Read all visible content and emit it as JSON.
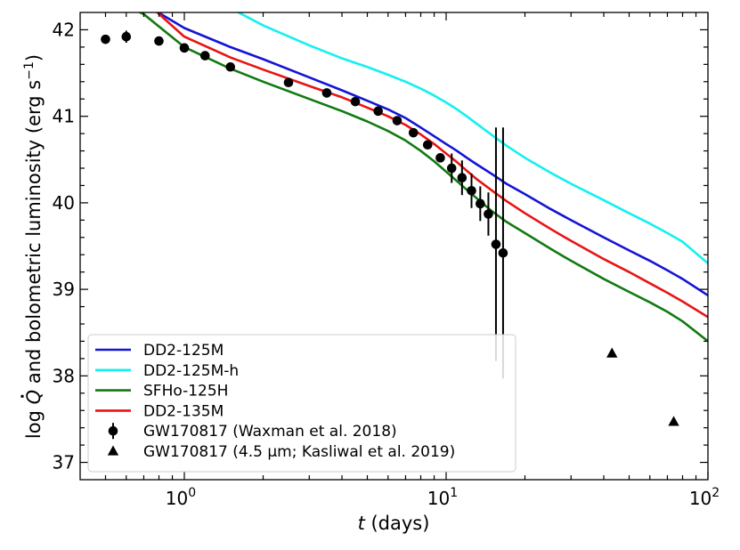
{
  "chart_data": {
    "type": "line",
    "title": "",
    "xlabel_italic": "t",
    "xlabel_rest": " (days)",
    "ylabel_pre": "log ",
    "ylabel_q": "Q",
    "ylabel_mid": " and bolometric luminosity (erg s",
    "ylabel_exp": "−1",
    "ylabel_post": ")",
    "xscale": "log",
    "xlim": [
      0.4,
      100
    ],
    "ylim": [
      36.8,
      42.2
    ],
    "x_ticks": [
      {
        "value": 1,
        "base": "10",
        "exp": "0"
      },
      {
        "value": 10,
        "base": "10",
        "exp": "1"
      },
      {
        "value": 100,
        "base": "10",
        "exp": "2"
      }
    ],
    "y_ticks": [
      {
        "value": 37,
        "label": "37"
      },
      {
        "value": 38,
        "label": "38"
      },
      {
        "value": 39,
        "label": "39"
      },
      {
        "value": 40,
        "label": "40"
      },
      {
        "value": 41,
        "label": "41"
      },
      {
        "value": 42,
        "label": "42"
      }
    ],
    "legend_position": "lower-left",
    "series": [
      {
        "name": "DD2-125M",
        "color": "#1414d6",
        "points": [
          [
            0.5,
            42.6
          ],
          [
            0.7,
            42.3
          ],
          [
            1.0,
            42.02
          ],
          [
            1.5,
            41.8
          ],
          [
            2.0,
            41.66
          ],
          [
            3.0,
            41.45
          ],
          [
            4.0,
            41.3
          ],
          [
            5.0,
            41.18
          ],
          [
            6.0,
            41.08
          ],
          [
            7.0,
            40.98
          ],
          [
            8.0,
            40.87
          ],
          [
            9.0,
            40.77
          ],
          [
            10.0,
            40.68
          ],
          [
            11.0,
            40.6
          ],
          [
            12.0,
            40.52
          ],
          [
            13.0,
            40.45
          ],
          [
            15.0,
            40.33
          ],
          [
            17.0,
            40.22
          ],
          [
            20.0,
            40.1
          ],
          [
            25.0,
            39.93
          ],
          [
            30.0,
            39.8
          ],
          [
            40.0,
            39.6
          ],
          [
            50.0,
            39.45
          ],
          [
            60.0,
            39.33
          ],
          [
            70.0,
            39.22
          ],
          [
            80.0,
            39.12
          ],
          [
            100.0,
            38.93
          ]
        ]
      },
      {
        "name": "DD2-125M-h",
        "color": "#14f0f0",
        "points": [
          [
            1.0,
            42.6
          ],
          [
            1.5,
            42.25
          ],
          [
            2.0,
            42.05
          ],
          [
            3.0,
            41.82
          ],
          [
            4.0,
            41.67
          ],
          [
            5.0,
            41.57
          ],
          [
            6.0,
            41.48
          ],
          [
            7.0,
            41.4
          ],
          [
            8.0,
            41.32
          ],
          [
            9.0,
            41.24
          ],
          [
            10.0,
            41.16
          ],
          [
            11.0,
            41.08
          ],
          [
            12.0,
            41.0
          ],
          [
            13.0,
            40.92
          ],
          [
            15.0,
            40.78
          ],
          [
            17.0,
            40.66
          ],
          [
            20.0,
            40.52
          ],
          [
            25.0,
            40.35
          ],
          [
            30.0,
            40.22
          ],
          [
            40.0,
            40.03
          ],
          [
            50.0,
            39.88
          ],
          [
            60.0,
            39.76
          ],
          [
            70.0,
            39.65
          ],
          [
            80.0,
            39.55
          ],
          [
            100.0,
            39.3
          ]
        ]
      },
      {
        "name": "SFHo-125H",
        "color": "#127a12",
        "points": [
          [
            0.5,
            42.4
          ],
          [
            0.7,
            42.18
          ],
          [
            1.0,
            41.8
          ],
          [
            1.5,
            41.55
          ],
          [
            2.0,
            41.4
          ],
          [
            3.0,
            41.2
          ],
          [
            4.0,
            41.06
          ],
          [
            5.0,
            40.94
          ],
          [
            6.0,
            40.83
          ],
          [
            7.0,
            40.72
          ],
          [
            8.0,
            40.6
          ],
          [
            9.0,
            40.48
          ],
          [
            10.0,
            40.36
          ],
          [
            11.0,
            40.25
          ],
          [
            12.0,
            40.15
          ],
          [
            13.0,
            40.06
          ],
          [
            15.0,
            39.9
          ],
          [
            17.0,
            39.78
          ],
          [
            20.0,
            39.65
          ],
          [
            25.0,
            39.47
          ],
          [
            30.0,
            39.33
          ],
          [
            40.0,
            39.12
          ],
          [
            50.0,
            38.97
          ],
          [
            60.0,
            38.85
          ],
          [
            70.0,
            38.74
          ],
          [
            80.0,
            38.63
          ],
          [
            100.0,
            38.4
          ]
        ]
      },
      {
        "name": "DD2-135M",
        "color": "#e81414",
        "points": [
          [
            0.5,
            42.6
          ],
          [
            0.7,
            42.34
          ],
          [
            1.0,
            41.92
          ],
          [
            1.5,
            41.68
          ],
          [
            2.0,
            41.54
          ],
          [
            3.0,
            41.35
          ],
          [
            4.0,
            41.22
          ],
          [
            5.0,
            41.1
          ],
          [
            6.0,
            41.0
          ],
          [
            7.0,
            40.9
          ],
          [
            8.0,
            40.79
          ],
          [
            9.0,
            40.68
          ],
          [
            10.0,
            40.57
          ],
          [
            11.0,
            40.47
          ],
          [
            12.0,
            40.37
          ],
          [
            13.0,
            40.28
          ],
          [
            15.0,
            40.14
          ],
          [
            17.0,
            40.02
          ],
          [
            20.0,
            39.88
          ],
          [
            25.0,
            39.7
          ],
          [
            30.0,
            39.56
          ],
          [
            40.0,
            39.35
          ],
          [
            50.0,
            39.2
          ],
          [
            60.0,
            39.07
          ],
          [
            70.0,
            38.96
          ],
          [
            80.0,
            38.86
          ],
          [
            100.0,
            38.68
          ]
        ]
      }
    ],
    "observations": [
      {
        "name": "GW170817 (Waxman et al. 2018)",
        "marker": "circle",
        "color": "#000000",
        "points": [
          {
            "x": 0.5,
            "y": 41.89,
            "yerr": 0.0
          },
          {
            "x": 0.6,
            "y": 41.92,
            "yerr": 0.07
          },
          {
            "x": 0.8,
            "y": 41.87,
            "yerr": 0.0
          },
          {
            "x": 1.0,
            "y": 41.79,
            "yerr": 0.0
          },
          {
            "x": 1.2,
            "y": 41.7,
            "yerr": 0.0
          },
          {
            "x": 1.5,
            "y": 41.57,
            "yerr": 0.0
          },
          {
            "x": 2.5,
            "y": 41.39,
            "yerr": 0.0
          },
          {
            "x": 3.5,
            "y": 41.27,
            "yerr": 0.0
          },
          {
            "x": 4.5,
            "y": 41.17,
            "yerr": 0.0
          },
          {
            "x": 5.5,
            "y": 41.06,
            "yerr": 0.0
          },
          {
            "x": 6.5,
            "y": 40.95,
            "yerr": 0.0
          },
          {
            "x": 7.5,
            "y": 40.81,
            "yerr": 0.0
          },
          {
            "x": 8.5,
            "y": 40.67,
            "yerr": 0.0
          },
          {
            "x": 9.5,
            "y": 40.52,
            "yerr": 0.0
          },
          {
            "x": 10.5,
            "y": 40.4,
            "yerr": 0.17
          },
          {
            "x": 11.5,
            "y": 40.29,
            "yerr": 0.2
          },
          {
            "x": 12.5,
            "y": 40.14,
            "yerr": 0.2
          },
          {
            "x": 13.5,
            "y": 39.99,
            "yerr": 0.2
          },
          {
            "x": 14.5,
            "y": 39.87,
            "yerr": 0.25
          },
          {
            "x": 15.5,
            "y": 39.52,
            "yerr": 1.35
          },
          {
            "x": 16.5,
            "y": 39.42,
            "yerr": 1.45
          }
        ]
      },
      {
        "name": "GW170817 (4.5 μm; Kasliwal et al. 2019)",
        "marker": "triangle",
        "color": "#000000",
        "points": [
          {
            "x": 43.0,
            "y": 38.26
          },
          {
            "x": 74.0,
            "y": 37.47
          }
        ]
      }
    ]
  }
}
